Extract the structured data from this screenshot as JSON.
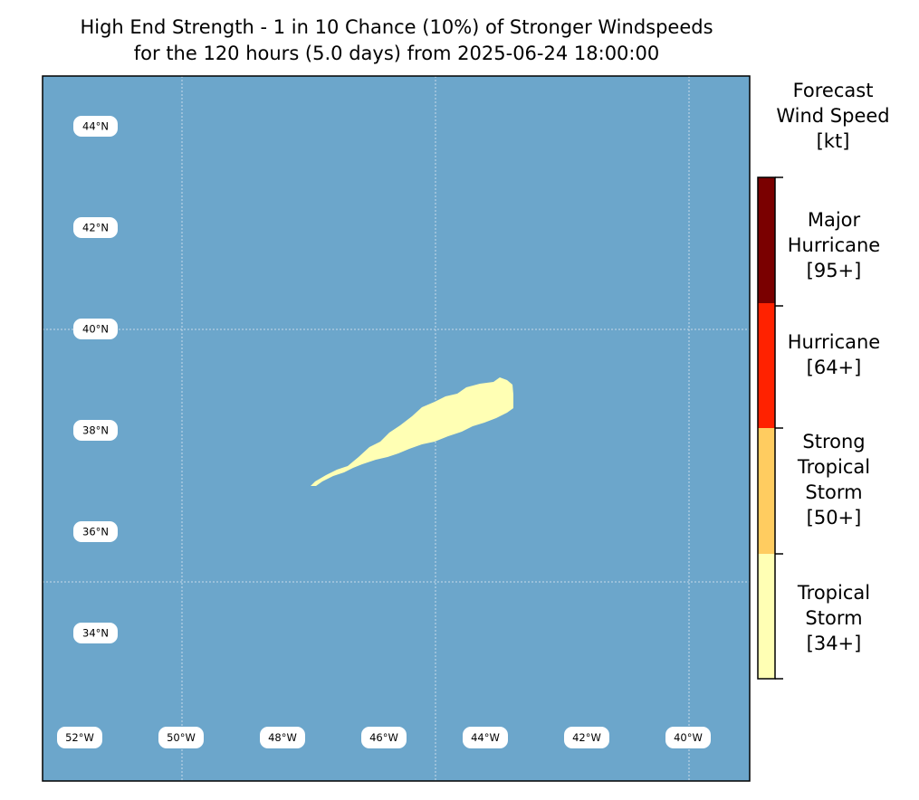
{
  "title": {
    "line1": "High End Strength - 1 in 10 Chance (10%) of Stronger Windspeeds",
    "line2": "for the 120 hours (5.0 days) from 2025-06-24 18:00:00"
  },
  "map": {
    "ocean_color": "#6ca6cb",
    "wind_area_color": "#ffffb4",
    "lat_labels": [
      "44°N",
      "42°N",
      "40°N",
      "38°N",
      "36°N",
      "34°N"
    ],
    "lon_labels": [
      "52°W",
      "50°W",
      "48°W",
      "46°W",
      "44°W",
      "42°W",
      "40°W"
    ]
  },
  "colorbar": {
    "title": [
      "Forecast",
      "Wind Speed",
      "[kt]"
    ],
    "categories": [
      {
        "name": "major_hurricane",
        "lines": [
          "Major",
          "Hurricane",
          "[95+]"
        ],
        "color": "#7a0000"
      },
      {
        "name": "hurricane",
        "lines": [
          "Hurricane",
          "[64+]"
        ],
        "color": "#ff2200"
      },
      {
        "name": "strong_tropical_storm",
        "lines": [
          "Strong",
          "Tropical",
          "Storm",
          "[50+]"
        ],
        "color": "#ffcc60"
      },
      {
        "name": "tropical_storm",
        "lines": [
          "Tropical",
          "Storm",
          "[34+]"
        ],
        "color": "#ffffb4"
      }
    ]
  }
}
